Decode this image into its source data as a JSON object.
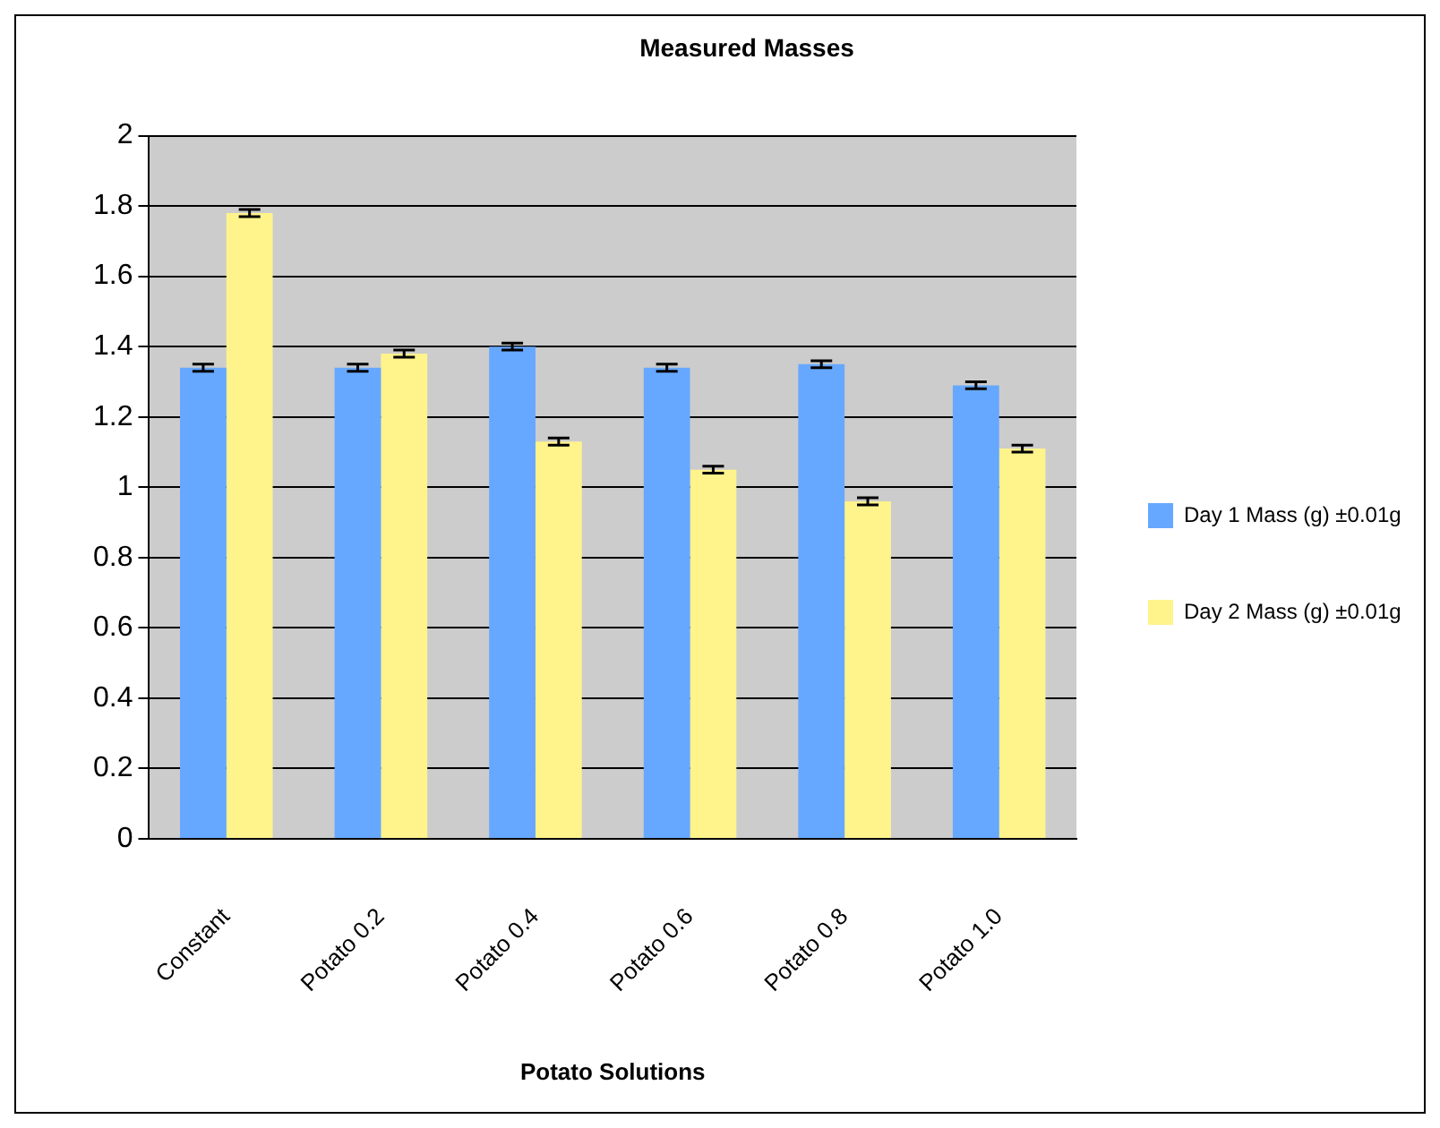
{
  "chart_data": {
    "type": "bar",
    "title": "Measured Masses",
    "xlabel": "Potato Solutions",
    "categories": [
      "Constant",
      "Potato 0.2",
      "Potato 0.4",
      "Potato 0.6",
      "Potato 0.8",
      "Potato 1.0"
    ],
    "series": [
      {
        "name": "Day 1 Mass (g) ±0.01g",
        "color": "#66a8ff",
        "values": [
          1.34,
          1.34,
          1.4,
          1.34,
          1.35,
          1.29
        ],
        "errors": [
          0.01,
          0.01,
          0.01,
          0.01,
          0.01,
          0.01
        ]
      },
      {
        "name": "Day 2 Mass (g) ±0.01g",
        "color": "#fff38c",
        "values": [
          1.78,
          1.38,
          1.13,
          1.05,
          0.96,
          1.11
        ],
        "errors": [
          0.01,
          0.01,
          0.01,
          0.01,
          0.01,
          0.01
        ]
      }
    ],
    "ylim": [
      0,
      2
    ],
    "yticks": [
      0,
      0.2,
      0.4,
      0.6,
      0.8,
      1,
      1.2,
      1.4,
      1.6,
      1.8,
      2
    ],
    "grid": "y",
    "legend": "right"
  }
}
